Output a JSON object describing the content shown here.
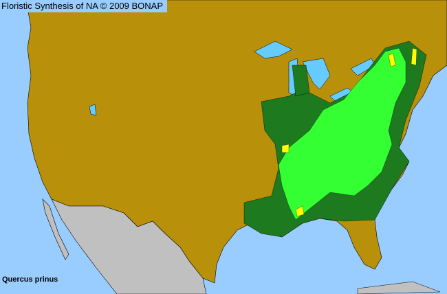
{
  "header": {
    "title": "Floristic Synthesis of NA © 2009 BONAP"
  },
  "map": {
    "species": "Quercus prinus",
    "colors": {
      "ocean": "#99ccff",
      "lakes": "#66ccff",
      "land_absent": "#b8900a",
      "mexico": "#c0c0c0",
      "present_native": "#1e7a1e",
      "present_county": "#33ff33",
      "rare": "#ffff00",
      "borders": "#000000"
    }
  }
}
